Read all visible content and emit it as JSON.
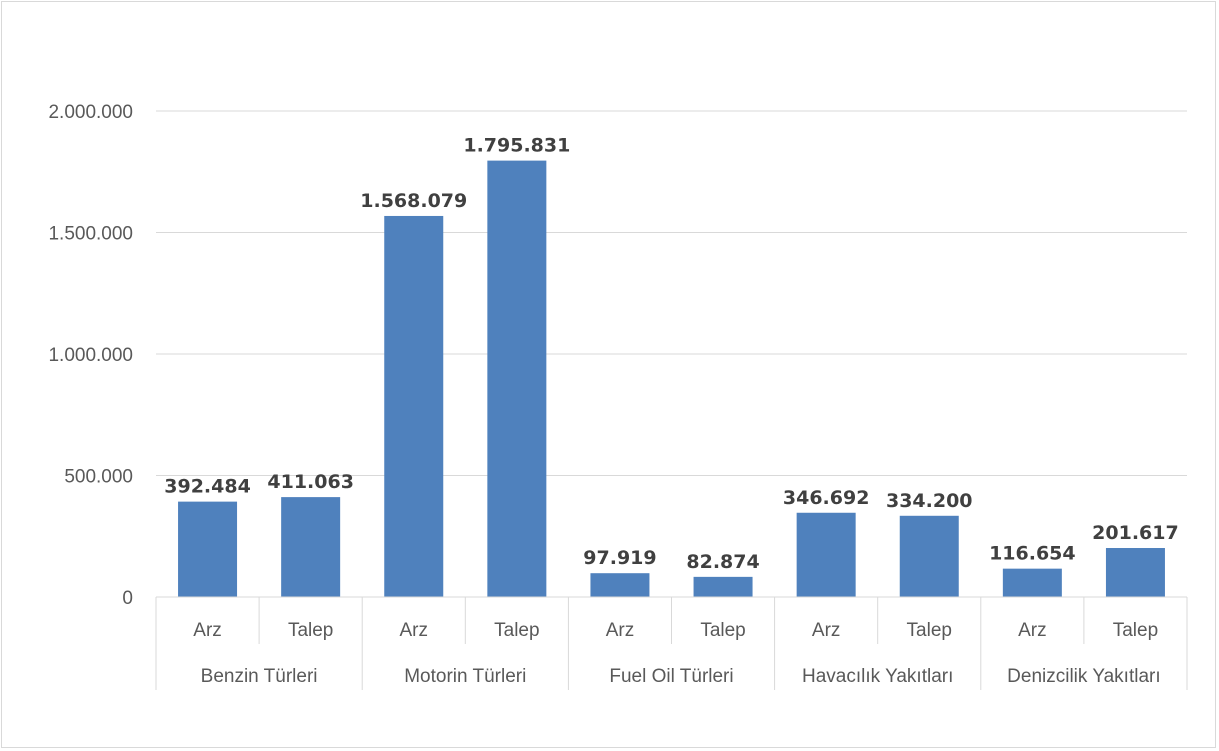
{
  "chart_data": {
    "type": "bar",
    "title": "",
    "xlabel": "",
    "ylabel": "",
    "ylim": [
      0,
      2000000
    ],
    "yticks": [
      0,
      500000,
      1000000,
      1500000,
      2000000
    ],
    "ytick_labels": [
      "0",
      "500.000",
      "1.000.000",
      "1.500.000",
      "2.000.000"
    ],
    "grid": true,
    "legend": "none",
    "bar_color": "#4f81bd",
    "groups": [
      {
        "label": "Benzin Türleri",
        "bars": [
          {
            "label": "Arz",
            "value": 392484,
            "value_label": "392.484"
          },
          {
            "label": "Talep",
            "value": 411063,
            "value_label": "411.063"
          }
        ]
      },
      {
        "label": "Motorin Türleri",
        "bars": [
          {
            "label": "Arz",
            "value": 1568079,
            "value_label": "1.568.079"
          },
          {
            "label": "Talep",
            "value": 1795831,
            "value_label": "1.795.831"
          }
        ]
      },
      {
        "label": "Fuel Oil Türleri",
        "bars": [
          {
            "label": "Arz",
            "value": 97919,
            "value_label": "97.919"
          },
          {
            "label": "Talep",
            "value": 82874,
            "value_label": "82.874"
          }
        ]
      },
      {
        "label": "Havacılık Yakıtları",
        "bars": [
          {
            "label": "Arz",
            "value": 346692,
            "value_label": "346.692"
          },
          {
            "label": "Talep",
            "value": 334200,
            "value_label": "334.200"
          }
        ]
      },
      {
        "label": "Denizcilik Yakıtları",
        "bars": [
          {
            "label": "Arz",
            "value": 116654,
            "value_label": "116.654"
          },
          {
            "label": "Talep",
            "value": 201617,
            "value_label": "201.617"
          }
        ]
      }
    ]
  }
}
